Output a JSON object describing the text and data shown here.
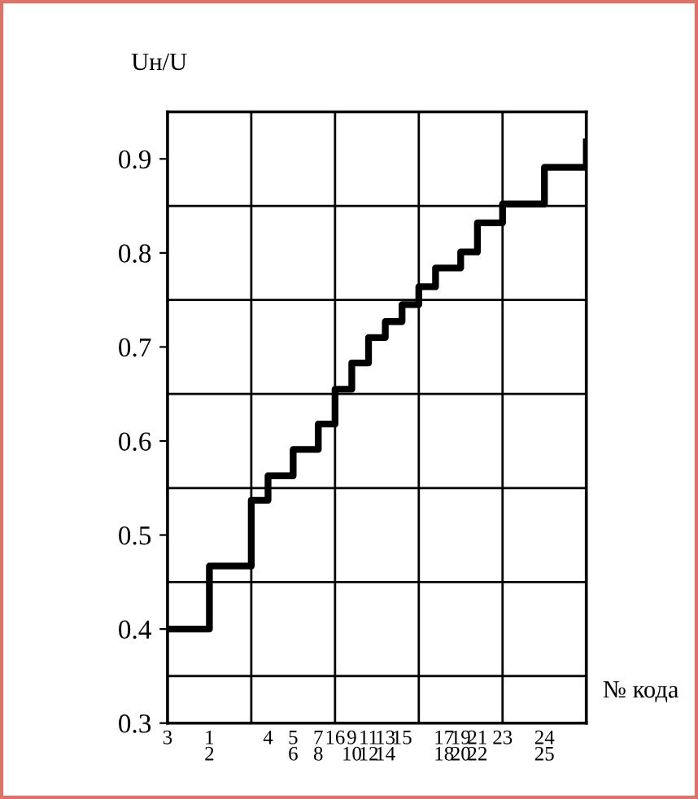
{
  "chart_data": {
    "type": "step",
    "ylabel": "Uн/U",
    "xlabel": "№ кода",
    "categories": [
      "3",
      null,
      null,
      null,
      null,
      "1\n2",
      null,
      null,
      null,
      null,
      null,
      null,
      "4",
      null,
      null,
      "5\n6",
      null,
      null,
      "7\n8",
      null,
      "16",
      null,
      "9\n10",
      null,
      "11\n12",
      null,
      "13\n14",
      null,
      "15",
      null,
      null,
      null,
      null,
      "17\n18",
      null,
      "19\n20",
      null,
      "21\n22",
      null,
      null,
      "23",
      null,
      null,
      null,
      null,
      "24\n25",
      null,
      null,
      null,
      null,
      null
    ],
    "values": [
      0.4,
      0.4,
      0.4,
      0.4,
      0.4,
      0.467,
      0.467,
      0.467,
      0.467,
      0.467,
      0.537,
      0.537,
      0.563,
      0.563,
      0.563,
      0.591,
      0.591,
      0.591,
      0.618,
      0.618,
      0.655,
      0.655,
      0.683,
      0.683,
      0.71,
      0.71,
      0.727,
      0.727,
      0.745,
      0.745,
      0.764,
      0.764,
      0.784,
      0.784,
      0.784,
      0.801,
      0.801,
      0.832,
      0.832,
      0.832,
      0.852,
      0.852,
      0.852,
      0.852,
      0.852,
      0.891,
      0.891,
      0.891,
      0.891,
      0.891,
      0.918
    ],
    "color": "#000000",
    "ylim": [
      0.3,
      0.95
    ],
    "yticks": [
      0.3,
      0.4,
      0.5,
      0.6,
      0.7,
      0.8,
      0.9
    ],
    "ref_lines": [
      {
        "axis": "y",
        "value": 0.35,
        "color": "#000000"
      },
      {
        "axis": "y",
        "value": 0.45,
        "color": "#000000"
      },
      {
        "axis": "y",
        "value": 0.55,
        "color": "#000000"
      },
      {
        "axis": "y",
        "value": 0.65,
        "color": "#000000"
      },
      {
        "axis": "y",
        "value": 0.75,
        "color": "#000000"
      },
      {
        "axis": "y",
        "value": 0.85,
        "color": "#000000"
      }
    ],
    "grid": false,
    "legend": false,
    "line_style": "solid",
    "marker": "none"
  }
}
